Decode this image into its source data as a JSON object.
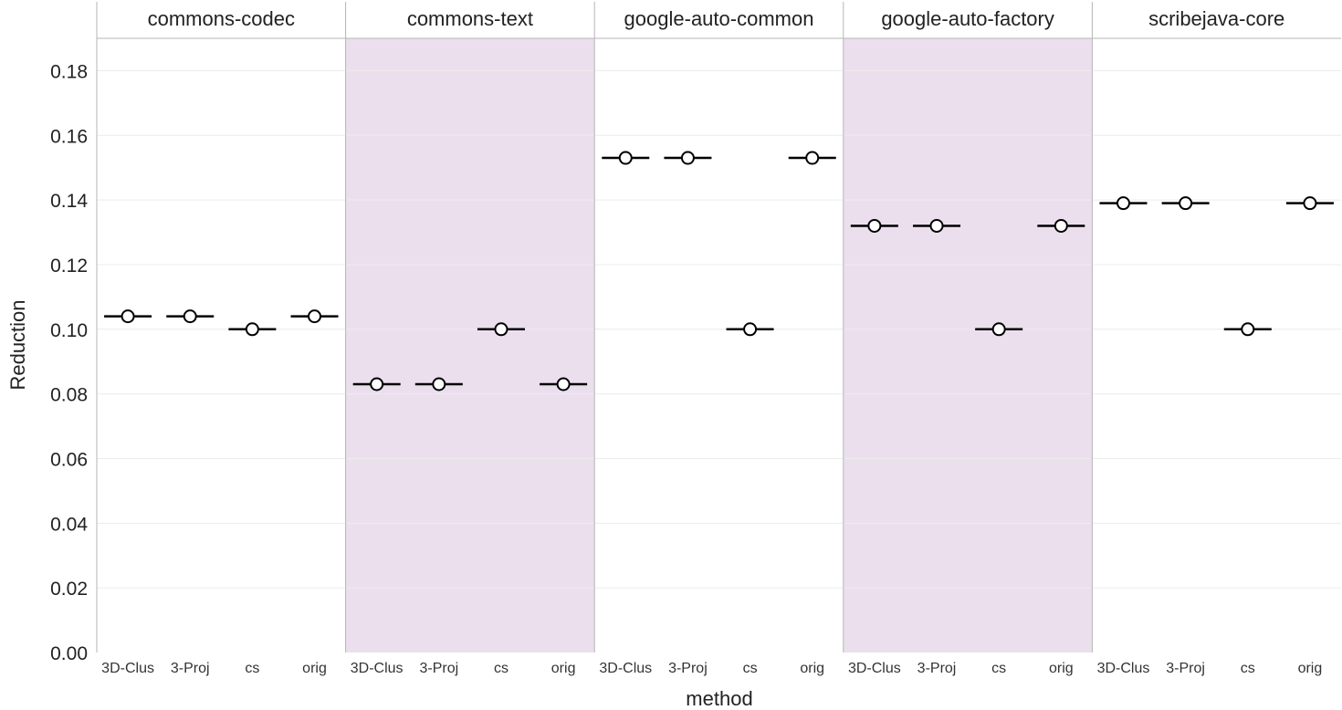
{
  "chart_data": {
    "type": "scatter",
    "xlabel": "method",
    "ylabel": "Reduction",
    "ylim": [
      0,
      0.19
    ],
    "yticks": [
      "0.00",
      "0.02",
      "0.04",
      "0.06",
      "0.08",
      "0.10",
      "0.12",
      "0.14",
      "0.16",
      "0.18"
    ],
    "ytick_values": [
      0,
      0.02,
      0.04,
      0.06,
      0.08,
      0.1,
      0.12,
      0.14,
      0.16,
      0.18
    ],
    "grid": true,
    "categories": [
      "3D-Clus",
      "3-Proj",
      "cs",
      "orig"
    ],
    "panels": [
      {
        "name": "commons-codec",
        "values": [
          0.104,
          0.104,
          0.1,
          0.104
        ]
      },
      {
        "name": "commons-text",
        "values": [
          0.083,
          0.083,
          0.1,
          0.083
        ]
      },
      {
        "name": "google-auto-common",
        "values": [
          0.153,
          0.153,
          0.1,
          0.153
        ]
      },
      {
        "name": "google-auto-factory",
        "values": [
          0.132,
          0.132,
          0.1,
          0.132
        ]
      },
      {
        "name": "scribejava-core",
        "values": [
          0.139,
          0.139,
          0.1,
          0.139
        ]
      }
    ],
    "colors": {
      "shade": "#ebdfee",
      "grid": "#ececec",
      "border": "#b5b5b5",
      "mark": "#000000",
      "marker_fill": "#ffffff"
    }
  }
}
